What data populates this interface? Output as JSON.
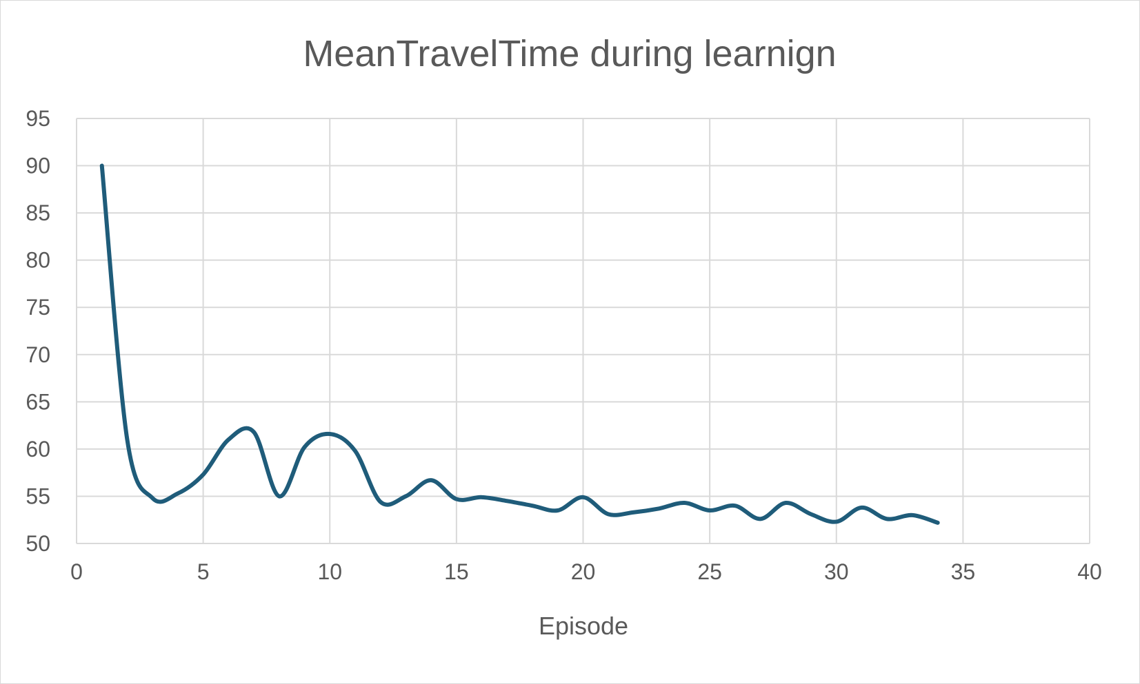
{
  "chart_data": {
    "type": "line",
    "title": "MeanTravelTime during learnign",
    "xlabel": "Episode",
    "ylabel": "",
    "xlim": [
      0,
      40
    ],
    "ylim": [
      50,
      95
    ],
    "xticks": [
      0,
      5,
      10,
      15,
      20,
      25,
      30,
      35,
      40
    ],
    "yticks": [
      50,
      55,
      60,
      65,
      70,
      75,
      80,
      85,
      90,
      95
    ],
    "grid": true,
    "legend": "none",
    "smooth": true,
    "colors": {
      "series": "#1f5c7a",
      "grid": "#d9d9d9",
      "text": "#595959"
    },
    "series": [
      {
        "x": [
          1,
          2,
          3,
          4,
          5,
          6,
          7,
          8,
          9,
          10,
          11,
          12,
          13,
          14,
          15,
          16,
          17,
          18,
          19,
          20,
          21,
          22,
          23,
          24,
          25,
          26,
          27,
          28,
          29,
          30,
          31,
          32,
          33,
          34
        ],
        "values": [
          90,
          61,
          54.8,
          55.3,
          57.3,
          61.0,
          61.8,
          55.0,
          60.2,
          61.6,
          59.8,
          54.4,
          55.0,
          56.7,
          54.7,
          54.9,
          54.5,
          54.0,
          53.5,
          54.9,
          53.1,
          53.3,
          53.7,
          54.3,
          53.5,
          54.0,
          52.6,
          54.3,
          53.1,
          52.3,
          53.8,
          52.6,
          53.0,
          52.2
        ]
      }
    ]
  }
}
